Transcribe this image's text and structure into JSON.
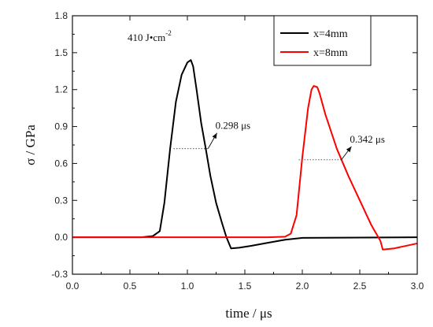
{
  "chart_data": {
    "type": "line",
    "xlabel": "time   / μs",
    "ylabel": "σ / GPa",
    "xlim": [
      0.0,
      3.0
    ],
    "ylim": [
      -0.3,
      1.8
    ],
    "x_ticks": [
      "0.0",
      "0.5",
      "1.0",
      "1.5",
      "2.0",
      "2.5",
      "3.0"
    ],
    "y_ticks": [
      "-0.3",
      "0.0",
      "0.3",
      "0.6",
      "0.9",
      "1.2",
      "1.5",
      "1.8"
    ],
    "grid": false,
    "legend_position": "top-right",
    "fluence_annotation": {
      "value": "410 J",
      "dot": "•",
      "unit": "cm",
      "exponent": "-2"
    },
    "series": [
      {
        "name": "x=4mm",
        "color": "#000000",
        "x": [
          0.0,
          0.6,
          0.7,
          0.76,
          0.8,
          0.85,
          0.9,
          0.95,
          1.0,
          1.03,
          1.05,
          1.08,
          1.12,
          1.16,
          1.2,
          1.25,
          1.3,
          1.34,
          1.38,
          1.45,
          1.55,
          1.7,
          1.85,
          2.0,
          3.0
        ],
        "y": [
          0.0,
          0.0,
          0.01,
          0.05,
          0.28,
          0.72,
          1.1,
          1.32,
          1.42,
          1.44,
          1.39,
          1.2,
          0.93,
          0.72,
          0.5,
          0.28,
          0.12,
          0.0,
          -0.09,
          -0.085,
          -0.07,
          -0.045,
          -0.02,
          -0.005,
          0.0
        ]
      },
      {
        "name": "x=8mm",
        "color": "#ff0000",
        "x": [
          0.0,
          1.7,
          1.85,
          1.9,
          1.95,
          2.0,
          2.05,
          2.08,
          2.1,
          2.13,
          2.15,
          2.2,
          2.3,
          2.4,
          2.5,
          2.6,
          2.68,
          2.7,
          2.8,
          2.9,
          3.0
        ],
        "y": [
          0.0,
          0.0,
          0.005,
          0.03,
          0.18,
          0.65,
          1.05,
          1.2,
          1.23,
          1.22,
          1.17,
          1.0,
          0.72,
          0.5,
          0.3,
          0.1,
          -0.03,
          -0.1,
          -0.09,
          -0.07,
          -0.05
        ]
      }
    ],
    "width_annotations": [
      {
        "label": "0.298 μs",
        "series": "x=4mm",
        "x1": 0.88,
        "x2": 1.18,
        "y": 0.72,
        "text_x": 1.23,
        "text_y": 0.88
      },
      {
        "label": "0.342 μs",
        "series": "x=8mm",
        "x1": 1.97,
        "x2": 2.34,
        "y": 0.63,
        "text_x": 2.4,
        "text_y": 0.77
      }
    ]
  }
}
